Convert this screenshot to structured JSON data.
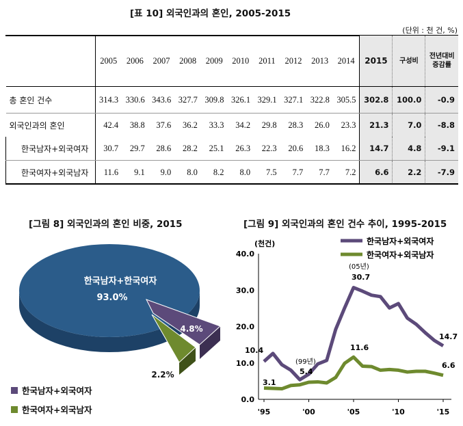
{
  "table": {
    "title": "[표 10] 외국인과의 혼인, 2005-2015",
    "unit": "(단위 : 천 건, %)",
    "years": [
      "2005",
      "2006",
      "2007",
      "2008",
      "2009",
      "2010",
      "2011",
      "2012",
      "2013",
      "2014"
    ],
    "highlight_year": "2015",
    "share_header": "구성비",
    "change_header_1": "전년대비",
    "change_header_2": "증감률",
    "rows": [
      {
        "label": "총 혼인 건수",
        "values": [
          "314.3",
          "330.6",
          "343.6",
          "327.7",
          "309.8",
          "326.1",
          "329.1",
          "327.1",
          "322.8",
          "305.5"
        ],
        "v2015": "302.8",
        "share": "100.0",
        "change": "-0.9"
      },
      {
        "label": "외국인과의 혼인",
        "values": [
          "42.4",
          "38.8",
          "37.6",
          "36.2",
          "33.3",
          "34.2",
          "29.8",
          "28.3",
          "26.0",
          "23.3"
        ],
        "v2015": "21.3",
        "share": "7.0",
        "change": "-8.8"
      },
      {
        "label": "한국남자+외국여자",
        "values": [
          "30.7",
          "29.7",
          "28.6",
          "28.2",
          "25.1",
          "26.3",
          "22.3",
          "20.6",
          "18.3",
          "16.2"
        ],
        "v2015": "14.7",
        "share": "4.8",
        "change": "-9.1"
      },
      {
        "label": "한국여자+외국남자",
        "values": [
          "11.6",
          "9.1",
          "9.0",
          "8.0",
          "8.2",
          "8.0",
          "7.5",
          "7.7",
          "7.7",
          "7.2"
        ],
        "v2015": "6.6",
        "share": "2.2",
        "change": "-7.9"
      }
    ]
  },
  "pie": {
    "title": "[그림 8] 외국인과의 혼인 비중, 2015",
    "main_label": "한국남자+한국여자",
    "main_pct": "93.0%",
    "slice2_pct": "4.8%",
    "slice3_pct": "2.2%",
    "legend": [
      "한국남자+외국여자",
      "한국여자+외국남자"
    ],
    "colors": {
      "main": "#2b5c8a",
      "purple": "#5c4a7a",
      "green": "#6e8a2e"
    }
  },
  "line": {
    "title": "[그림 9] 외국인과의 혼인 건수 추이, 1995-2015",
    "ylabel": "(천건)",
    "yticks": [
      "40.0",
      "30.0",
      "20.0",
      "10.0",
      "0.0"
    ],
    "xticks": [
      "'95",
      "'00",
      "'05",
      "'10",
      "'15"
    ],
    "legend": [
      "한국남자+외국여자",
      "한국여자+외국남자"
    ],
    "ann": {
      "s1_1995": "10.4",
      "s1_99_tag": "(99년)",
      "s1_1999": "5.4",
      "s1_05_tag": "(05년)",
      "s1_2005": "30.7",
      "s1_2015": "14.7",
      "s2_1995": "3.1",
      "s2_2005": "11.6",
      "s2_2015": "6.6"
    }
  },
  "chart_data": [
    {
      "type": "pie",
      "title": "[그림 8] 외국인과의 혼인 비중, 2015",
      "slices": [
        {
          "name": "한국남자+한국여자",
          "value": 93.0
        },
        {
          "name": "한국남자+외국여자",
          "value": 4.8
        },
        {
          "name": "한국여자+외국남자",
          "value": 2.2
        }
      ]
    },
    {
      "type": "line",
      "title": "[그림 9] 외국인과의 혼인 건수 추이, 1995-2015",
      "ylabel": "(천건)",
      "ylim": [
        0,
        40
      ],
      "x": [
        1995,
        1996,
        1997,
        1998,
        1999,
        2000,
        2001,
        2002,
        2003,
        2004,
        2005,
        2006,
        2007,
        2008,
        2009,
        2010,
        2011,
        2012,
        2013,
        2014,
        2015
      ],
      "series": [
        {
          "name": "한국남자+외국여자",
          "color": "#5c4a7a",
          "values": [
            10.4,
            12.6,
            9.5,
            8.0,
            5.4,
            6.9,
            9.7,
            10.7,
            19.2,
            25.1,
            30.7,
            29.7,
            28.6,
            28.2,
            25.1,
            26.3,
            22.3,
            20.6,
            18.3,
            16.2,
            14.7
          ]
        },
        {
          "name": "한국여자+외국남자",
          "color": "#6e8a2e",
          "values": [
            3.1,
            3.0,
            2.9,
            3.8,
            4.0,
            4.7,
            4.8,
            4.5,
            6.0,
            9.9,
            11.6,
            9.1,
            9.0,
            8.0,
            8.2,
            8.0,
            7.5,
            7.7,
            7.7,
            7.2,
            6.6
          ]
        }
      ],
      "grid": false,
      "legend_position": "top-right"
    }
  ]
}
